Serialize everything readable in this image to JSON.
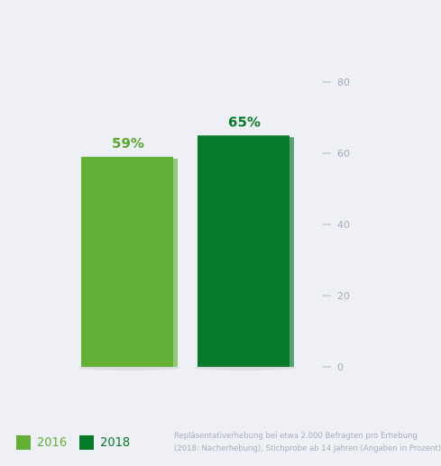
{
  "chart_data": {
    "type": "bar",
    "categories": [
      "2016",
      "2018"
    ],
    "values": [
      59,
      65
    ],
    "value_labels": [
      "59%",
      "65%"
    ],
    "ylim": [
      0,
      80
    ],
    "yticks": [
      0,
      20,
      40,
      60,
      80
    ],
    "y_axis_position": "right",
    "grid": false,
    "legend_position": "bottom-left",
    "colors": [
      "#62b035",
      "#077a2b"
    ],
    "label_colors": [
      "#5aa72e",
      "#0a7a2c"
    ]
  },
  "legend": {
    "items": [
      {
        "label": "2016",
        "color": "#62b035"
      },
      {
        "label": "2018",
        "color": "#077a2b"
      }
    ]
  },
  "footnote": {
    "line1": "Repläsentativerhebung bei etwa 2.000 Befragten pro Erhebung",
    "line2": "(2018: Nacherhebung), Stichprobe ab 14 Jahren (Angaben in Prozent)"
  }
}
